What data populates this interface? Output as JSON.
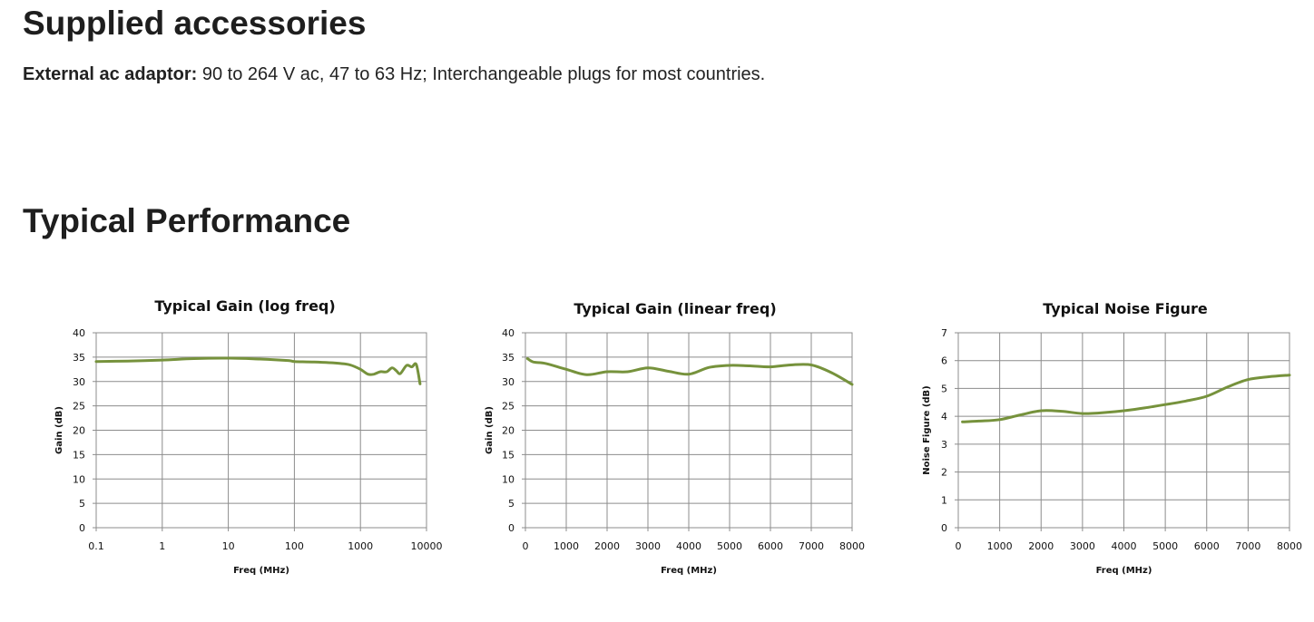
{
  "sections": {
    "accessories_title": "Supplied accessories",
    "adaptor_label": "External ac adaptor:",
    "adaptor_text": " 90 to 264 V ac, 47 to 63 Hz; Interchangeable plugs for most countries.",
    "performance_title": "Typical Performance"
  },
  "colors": {
    "series": "#76923c",
    "grid": "#8c8c8c"
  },
  "chart_data": [
    {
      "type": "line",
      "title": "Typical Gain (log freq)",
      "xlabel": "Freq (MHz)",
      "ylabel": "Gain (dB)",
      "xscale": "log",
      "xlim": [
        0.1,
        10000
      ],
      "ylim": [
        0,
        40
      ],
      "xticks": [
        0.1,
        1,
        10,
        100,
        1000,
        10000
      ],
      "xtick_labels": [
        "0.1",
        "1",
        "10",
        "100",
        "1000",
        "10000"
      ],
      "yticks": [
        0,
        5,
        10,
        15,
        20,
        25,
        30,
        35,
        40
      ],
      "grid": true,
      "series": [
        {
          "x": [
            0.1,
            0.3,
            1,
            3,
            10,
            30,
            80,
            100,
            200,
            500,
            700,
            1000,
            1300,
            1600,
            2000,
            2500,
            3000,
            3500,
            4000,
            5000,
            6000,
            7000,
            8000
          ],
          "y": [
            34.1,
            34.2,
            34.4,
            34.7,
            34.8,
            34.6,
            34.3,
            34.1,
            34.0,
            33.7,
            33.4,
            32.5,
            31.5,
            31.5,
            32.0,
            32.0,
            32.8,
            32.2,
            31.6,
            33.3,
            33.0,
            33.5,
            29.5
          ]
        }
      ]
    },
    {
      "type": "line",
      "title": "Typical Gain (linear freq)",
      "xlabel": "Freq (MHz)",
      "ylabel": "Gain (dB)",
      "xlim": [
        0,
        8000
      ],
      "ylim": [
        0,
        40
      ],
      "xticks": [
        0,
        1000,
        2000,
        3000,
        4000,
        5000,
        6000,
        7000,
        8000
      ],
      "yticks": [
        0,
        5,
        10,
        15,
        20,
        25,
        30,
        35,
        40
      ],
      "grid": true,
      "series": [
        {
          "x": [
            50,
            200,
            500,
            1000,
            1500,
            2000,
            2500,
            3000,
            3500,
            4000,
            4500,
            5000,
            5500,
            6000,
            6500,
            7000,
            7500,
            8000
          ],
          "y": [
            34.7,
            34.0,
            33.7,
            32.5,
            31.4,
            32.0,
            32.0,
            32.8,
            32.1,
            31.5,
            32.9,
            33.3,
            33.2,
            33.0,
            33.4,
            33.4,
            31.8,
            29.4
          ]
        }
      ]
    },
    {
      "type": "line",
      "title": "Typical Noise Figure",
      "xlabel": "Freq (MHz)",
      "ylabel": "Noise Figure (dB)",
      "xlim": [
        0,
        8000
      ],
      "ylim": [
        0,
        7
      ],
      "xticks": [
        0,
        1000,
        2000,
        3000,
        4000,
        5000,
        6000,
        7000,
        8000
      ],
      "yticks": [
        0,
        1,
        2,
        3,
        4,
        5,
        6,
        7
      ],
      "grid": true,
      "series": [
        {
          "x": [
            100,
            500,
            1000,
            1500,
            2000,
            2500,
            3000,
            3500,
            4000,
            4500,
            5000,
            5500,
            6000,
            6500,
            7000,
            7500,
            8000
          ],
          "y": [
            3.8,
            3.83,
            3.88,
            4.05,
            4.2,
            4.18,
            4.1,
            4.13,
            4.2,
            4.3,
            4.42,
            4.55,
            4.72,
            5.05,
            5.32,
            5.42,
            5.48
          ]
        }
      ]
    }
  ]
}
